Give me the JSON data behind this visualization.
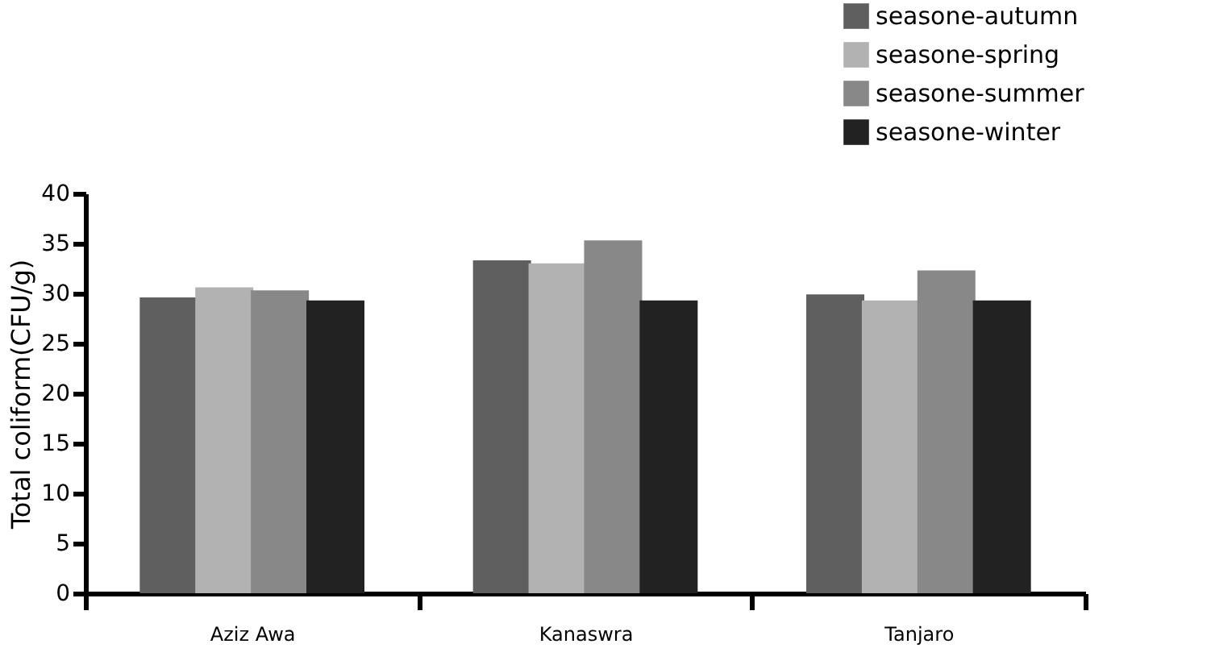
{
  "chart_data": {
    "type": "bar",
    "ylabel": "Total coliform(CFU/g)",
    "categories": [
      "Aziz Awa",
      "Kanaswra",
      "Tanjaro"
    ],
    "series": [
      {
        "name": "seasone-autumn",
        "color": "#5f5f5f",
        "values": [
          29.6,
          33.3,
          29.9
        ]
      },
      {
        "name": "seasone-spring",
        "color": "#b2b2b2",
        "values": [
          30.6,
          33.0,
          29.3
        ]
      },
      {
        "name": "seasone-summer",
        "color": "#888888",
        "values": [
          30.3,
          35.3,
          32.3
        ]
      },
      {
        "name": "seasone-winter",
        "color": "#222222",
        "values": [
          29.3,
          29.3,
          29.3
        ]
      }
    ],
    "ylim": [
      0,
      40
    ],
    "yticks": [
      0,
      5,
      10,
      15,
      20,
      25,
      30,
      35,
      40
    ],
    "grid": false,
    "legend": "top right"
  }
}
